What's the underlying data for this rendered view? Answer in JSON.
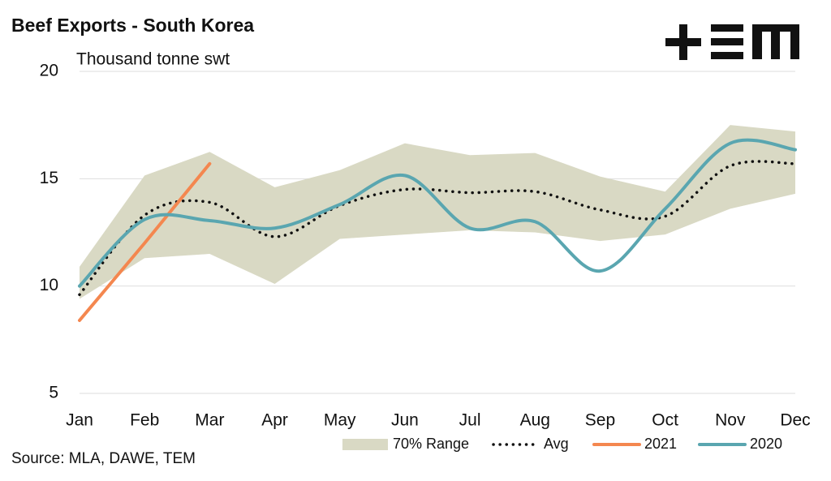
{
  "chart_data": {
    "type": "line",
    "title": "Beef Exports - South Korea",
    "subtitle": "Thousand tonne swt",
    "source": "Source: MLA, DAWE, TEM",
    "categories": [
      "Jan",
      "Feb",
      "Mar",
      "Apr",
      "May",
      "Jun",
      "Jul",
      "Aug",
      "Sep",
      "Oct",
      "Nov",
      "Dec"
    ],
    "ylim": [
      5,
      20
    ],
    "yticks": [
      5,
      10,
      15,
      20
    ],
    "grid": true,
    "legend": "bottom",
    "series": [
      {
        "name": "70% Range",
        "kind": "band",
        "color": "#d9d9c4",
        "upper": [
          10.9,
          15.15,
          16.25,
          14.6,
          15.4,
          16.65,
          16.1,
          16.2,
          15.1,
          14.4,
          17.5,
          17.2
        ],
        "lower": [
          9.4,
          11.3,
          11.5,
          10.1,
          12.2,
          12.4,
          12.6,
          12.5,
          12.1,
          12.4,
          13.6,
          14.3
        ]
      },
      {
        "name": "Avg",
        "kind": "dotted",
        "color": "#111111",
        "values": [
          9.6,
          13.3,
          13.9,
          12.3,
          13.75,
          14.5,
          14.35,
          14.4,
          13.55,
          13.25,
          15.6,
          15.7
        ]
      },
      {
        "name": "2021",
        "kind": "straight",
        "color": "#f4874f",
        "values": [
          8.4,
          12.0,
          15.7,
          null,
          null,
          null,
          null,
          null,
          null,
          null,
          null,
          null
        ]
      },
      {
        "name": "2020",
        "kind": "smooth",
        "color": "#5aa6b0",
        "values": [
          10.0,
          13.1,
          13.05,
          12.7,
          13.8,
          15.15,
          12.7,
          13.0,
          10.7,
          13.6,
          16.65,
          16.35
        ]
      }
    ]
  }
}
